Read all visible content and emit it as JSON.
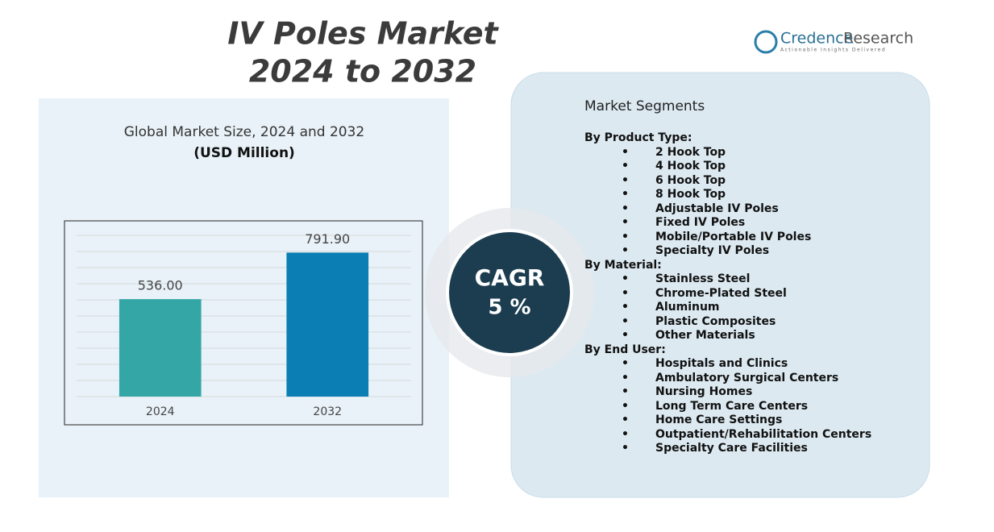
{
  "header": {
    "title_line1": "IV Poles Market",
    "title_line2": "2024 to 2032"
  },
  "brand": {
    "name_part1": "Credence",
    "name_part2": "Research",
    "tagline": "Actionable Insights Delivered"
  },
  "chart_data": {
    "type": "bar",
    "title": "Global Market Size, 2024 and 2032",
    "subtitle": "(USD Million)",
    "categories": [
      "2024",
      "2032"
    ],
    "values": [
      536.0,
      791.9
    ],
    "value_labels": [
      "536.00",
      "791.90"
    ],
    "colors": [
      "#35a6a6",
      "#0b7fb3"
    ],
    "ylim": [
      0,
      900
    ]
  },
  "cagr": {
    "label": "CAGR",
    "value": "5 %"
  },
  "segments": {
    "heading": "Market Segments",
    "groups": [
      {
        "name": "By Product Type:",
        "items": [
          "2 Hook Top",
          "4 Hook Top",
          "6 Hook Top",
          "8 Hook Top",
          "Adjustable IV Poles",
          "Fixed IV Poles",
          "Mobile/Portable IV Poles",
          "Specialty IV Poles"
        ]
      },
      {
        "name": "By Material:",
        "items": [
          "Stainless Steel",
          "Chrome-Plated Steel",
          "Aluminum",
          "Plastic Composites",
          "Other Materials"
        ]
      },
      {
        "name": "By End User:",
        "items": [
          "Hospitals and Clinics",
          "Ambulatory Surgical Centers",
          "Nursing Homes",
          "Long Term Care Centers",
          "Home Care Settings",
          "Outpatient/Rehabilitation Centers",
          "Specialty Care Facilities"
        ]
      }
    ]
  }
}
